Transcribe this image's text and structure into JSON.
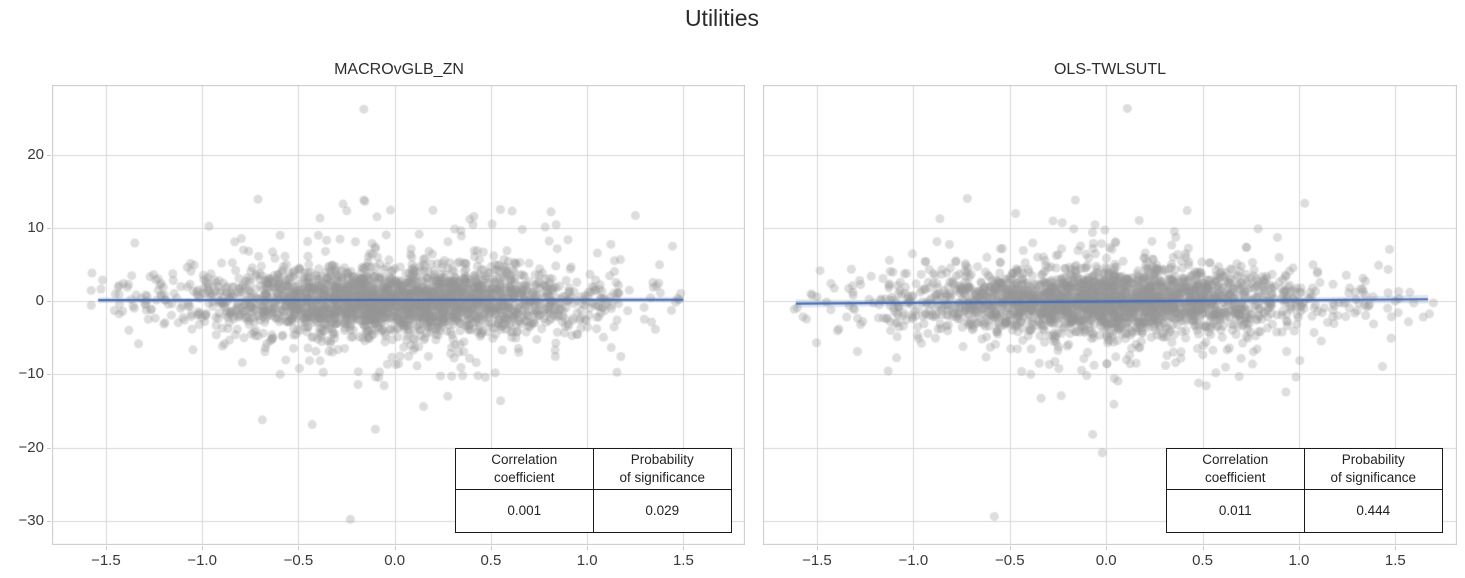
{
  "figure": {
    "title": "Utilities"
  },
  "colors": {
    "point": "rgba(150,150,150,0.32)",
    "regression_line": "#476cb4",
    "confidence_band": "rgba(76,114,176,0.18)",
    "grid": "#d7d7d7",
    "spine": "#c9c9c9",
    "table_border": "#1a1a1a",
    "tick_text": "#3a3a3a"
  },
  "chart_data": [
    {
      "type": "scatter",
      "title": "MACROvGLB_ZN",
      "xlim": [
        -1.78,
        1.82
      ],
      "ylim": [
        -33.3,
        29.5
      ],
      "xticks": [
        -1.5,
        -1.0,
        -0.5,
        0.0,
        0.5,
        1.0,
        1.5
      ],
      "xtick_labels": [
        "−1.5",
        "−1.0",
        "−0.5",
        "0.0",
        "0.5",
        "1.0",
        "1.5"
      ],
      "yticks": [
        20,
        10,
        0,
        -10,
        -20,
        -30
      ],
      "ytick_labels": [
        "20",
        "10",
        "0",
        "−10",
        "−20",
        "−30"
      ],
      "grid": true,
      "points": {
        "n": 2600,
        "seed": 42,
        "x_sigma": 0.52,
        "x_wide_sigma": 0.85,
        "x_wide_frac": 0.12,
        "x_clip": [
          -1.58,
          1.52
        ],
        "y_core_sigma": 2.15,
        "y_tail_sigma": 4.8,
        "y_tail_frac": 0.2,
        "y_clip": [
          -17.0,
          14.5
        ]
      },
      "outliers": [
        [
          -0.16,
          26.2
        ],
        [
          -0.23,
          -29.8
        ],
        [
          -0.1,
          -17.5
        ],
        [
          0.15,
          -14.4
        ],
        [
          -0.71,
          13.9
        ],
        [
          -0.16,
          13.8
        ],
        [
          0.55,
          -13.6
        ]
      ],
      "regression": {
        "x": [
          -1.54,
          1.5
        ],
        "y": [
          0.12,
          0.18
        ],
        "band_half": [
          0.4,
          0.2,
          0.4
        ]
      },
      "table": {
        "col1_header": "Correlation\ncoefficient",
        "col2_header": "Probability\nof significance",
        "col1_value": "0.001",
        "col2_value": "0.029"
      }
    },
    {
      "type": "scatter",
      "title": "OLS-TWLSUTL",
      "xlim": [
        -1.78,
        1.82
      ],
      "ylim": [
        -33.3,
        29.5
      ],
      "xticks": [
        -1.5,
        -1.0,
        -0.5,
        0.0,
        0.5,
        1.0,
        1.5
      ],
      "xtick_labels": [
        "−1.5",
        "−1.0",
        "−0.5",
        "0.0",
        "0.5",
        "1.0",
        "1.5"
      ],
      "yticks": [
        20,
        10,
        0,
        -10,
        -20,
        -30
      ],
      "ytick_labels": [
        "20",
        "10",
        "0",
        "−10",
        "−20",
        "−30"
      ],
      "grid": true,
      "points": {
        "n": 2600,
        "seed": 1234,
        "x_sigma": 0.5,
        "x_wide_sigma": 0.9,
        "x_wide_frac": 0.13,
        "x_clip": [
          -1.67,
          1.7
        ],
        "y_core_sigma": 2.1,
        "y_tail_sigma": 4.6,
        "y_tail_frac": 0.2,
        "y_clip": [
          -16.5,
          14.2
        ]
      },
      "outliers": [
        [
          0.11,
          26.3
        ],
        [
          -0.58,
          -29.4
        ],
        [
          -0.02,
          -20.7
        ],
        [
          -0.07,
          -18.2
        ],
        [
          0.04,
          -14.1
        ],
        [
          -0.72,
          14.0
        ],
        [
          -0.16,
          13.8
        ]
      ],
      "regression": {
        "x": [
          -1.61,
          1.67
        ],
        "y": [
          -0.35,
          0.25
        ],
        "band_half": [
          0.55,
          0.3,
          0.6
        ]
      },
      "table": {
        "col1_header": "Correlation\ncoefficient",
        "col2_header": "Probability\nof significance",
        "col1_value": "0.011",
        "col2_value": "0.444"
      }
    }
  ]
}
